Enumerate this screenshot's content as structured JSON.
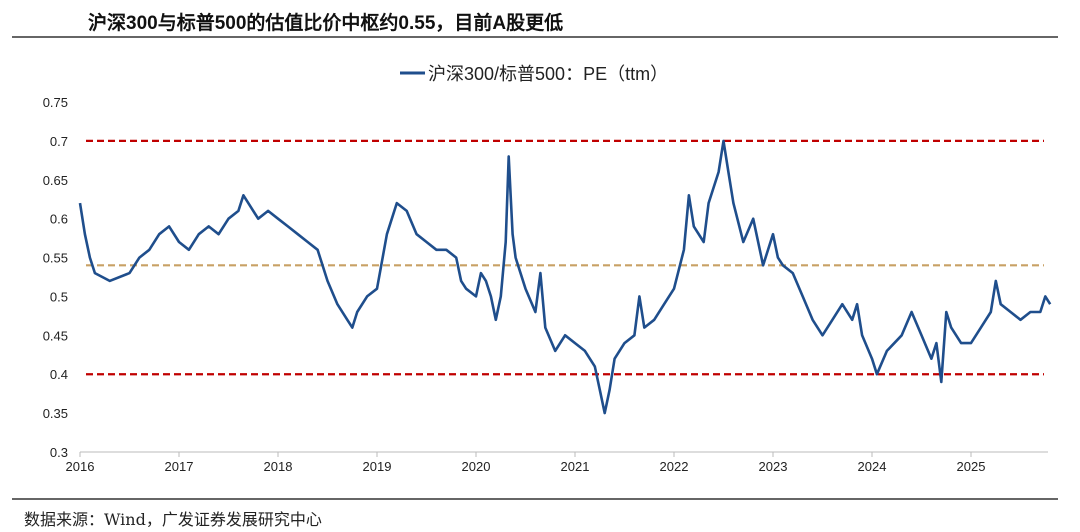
{
  "title": "沪深300与标普500的估值比价中枢约0.55，目前A股更低",
  "source": "数据来源：Wind，广发证券发展研究中心",
  "chart_data": {
    "type": "line",
    "title": "沪深300与标普500的估值比价中枢约0.55，目前A股更低",
    "legend": "沪深300/标普500：PE（ttm）",
    "legend_placement": "top-center",
    "xlabel": "",
    "ylabel": "",
    "xlim": [
      2016,
      2025.8
    ],
    "ylim": [
      0.3,
      0.75
    ],
    "x_ticks": [
      "2016",
      "2017",
      "2018",
      "2019",
      "2020",
      "2021",
      "2022",
      "2023",
      "2024",
      "2025"
    ],
    "y_ticks": [
      "0.3",
      "0.35",
      "0.4",
      "0.45",
      "0.5",
      "0.55",
      "0.6",
      "0.65",
      "0.7",
      "0.75"
    ],
    "line_color": "#1f4e8c",
    "reference_lines": [
      {
        "value": 0.7,
        "color": "#c00000",
        "style": "dashed"
      },
      {
        "value": 0.54,
        "color": "#c8a165",
        "style": "dashed"
      },
      {
        "value": 0.4,
        "color": "#c00000",
        "style": "dashed"
      }
    ],
    "series": [
      {
        "name": "沪深300/标普500：PE（ttm）",
        "points": [
          [
            2016.0,
            0.62
          ],
          [
            2016.05,
            0.58
          ],
          [
            2016.1,
            0.55
          ],
          [
            2016.15,
            0.53
          ],
          [
            2016.3,
            0.52
          ],
          [
            2016.5,
            0.53
          ],
          [
            2016.6,
            0.55
          ],
          [
            2016.7,
            0.56
          ],
          [
            2016.8,
            0.58
          ],
          [
            2016.9,
            0.59
          ],
          [
            2017.0,
            0.57
          ],
          [
            2017.1,
            0.56
          ],
          [
            2017.2,
            0.58
          ],
          [
            2017.3,
            0.59
          ],
          [
            2017.4,
            0.58
          ],
          [
            2017.5,
            0.6
          ],
          [
            2017.6,
            0.61
          ],
          [
            2017.65,
            0.63
          ],
          [
            2017.7,
            0.62
          ],
          [
            2017.8,
            0.6
          ],
          [
            2017.9,
            0.61
          ],
          [
            2018.0,
            0.6
          ],
          [
            2018.1,
            0.59
          ],
          [
            2018.2,
            0.58
          ],
          [
            2018.3,
            0.57
          ],
          [
            2018.4,
            0.56
          ],
          [
            2018.5,
            0.52
          ],
          [
            2018.6,
            0.49
          ],
          [
            2018.7,
            0.47
          ],
          [
            2018.75,
            0.46
          ],
          [
            2018.8,
            0.48
          ],
          [
            2018.9,
            0.5
          ],
          [
            2019.0,
            0.51
          ],
          [
            2019.1,
            0.58
          ],
          [
            2019.2,
            0.62
          ],
          [
            2019.3,
            0.61
          ],
          [
            2019.4,
            0.58
          ],
          [
            2019.5,
            0.57
          ],
          [
            2019.6,
            0.56
          ],
          [
            2019.7,
            0.56
          ],
          [
            2019.8,
            0.55
          ],
          [
            2019.85,
            0.52
          ],
          [
            2019.9,
            0.51
          ],
          [
            2020.0,
            0.5
          ],
          [
            2020.05,
            0.53
          ],
          [
            2020.1,
            0.52
          ],
          [
            2020.15,
            0.5
          ],
          [
            2020.2,
            0.47
          ],
          [
            2020.25,
            0.5
          ],
          [
            2020.3,
            0.57
          ],
          [
            2020.33,
            0.68
          ],
          [
            2020.37,
            0.58
          ],
          [
            2020.4,
            0.55
          ],
          [
            2020.5,
            0.51
          ],
          [
            2020.6,
            0.48
          ],
          [
            2020.65,
            0.53
          ],
          [
            2020.7,
            0.46
          ],
          [
            2020.8,
            0.43
          ],
          [
            2020.9,
            0.45
          ],
          [
            2021.0,
            0.44
          ],
          [
            2021.1,
            0.43
          ],
          [
            2021.2,
            0.41
          ],
          [
            2021.25,
            0.38
          ],
          [
            2021.3,
            0.35
          ],
          [
            2021.35,
            0.38
          ],
          [
            2021.4,
            0.42
          ],
          [
            2021.5,
            0.44
          ],
          [
            2021.6,
            0.45
          ],
          [
            2021.65,
            0.5
          ],
          [
            2021.7,
            0.46
          ],
          [
            2021.8,
            0.47
          ],
          [
            2021.9,
            0.49
          ],
          [
            2022.0,
            0.51
          ],
          [
            2022.1,
            0.56
          ],
          [
            2022.15,
            0.63
          ],
          [
            2022.2,
            0.59
          ],
          [
            2022.3,
            0.57
          ],
          [
            2022.35,
            0.62
          ],
          [
            2022.45,
            0.66
          ],
          [
            2022.5,
            0.7
          ],
          [
            2022.55,
            0.66
          ],
          [
            2022.6,
            0.62
          ],
          [
            2022.7,
            0.57
          ],
          [
            2022.8,
            0.6
          ],
          [
            2022.9,
            0.54
          ],
          [
            2023.0,
            0.58
          ],
          [
            2023.05,
            0.55
          ],
          [
            2023.1,
            0.54
          ],
          [
            2023.2,
            0.53
          ],
          [
            2023.3,
            0.5
          ],
          [
            2023.4,
            0.47
          ],
          [
            2023.5,
            0.45
          ],
          [
            2023.6,
            0.47
          ],
          [
            2023.7,
            0.49
          ],
          [
            2023.8,
            0.47
          ],
          [
            2023.85,
            0.49
          ],
          [
            2023.9,
            0.45
          ],
          [
            2024.0,
            0.42
          ],
          [
            2024.05,
            0.4
          ],
          [
            2024.15,
            0.43
          ],
          [
            2024.3,
            0.45
          ],
          [
            2024.4,
            0.48
          ],
          [
            2024.5,
            0.45
          ],
          [
            2024.6,
            0.42
          ],
          [
            2024.65,
            0.44
          ],
          [
            2024.7,
            0.39
          ],
          [
            2024.75,
            0.48
          ],
          [
            2024.8,
            0.46
          ],
          [
            2024.9,
            0.44
          ],
          [
            2025.0,
            0.44
          ],
          [
            2025.1,
            0.46
          ],
          [
            2025.2,
            0.48
          ],
          [
            2025.25,
            0.52
          ],
          [
            2025.3,
            0.49
          ],
          [
            2025.4,
            0.48
          ],
          [
            2025.5,
            0.47
          ],
          [
            2025.6,
            0.48
          ],
          [
            2025.7,
            0.48
          ],
          [
            2025.75,
            0.5
          ],
          [
            2025.8,
            0.49
          ]
        ]
      }
    ]
  }
}
